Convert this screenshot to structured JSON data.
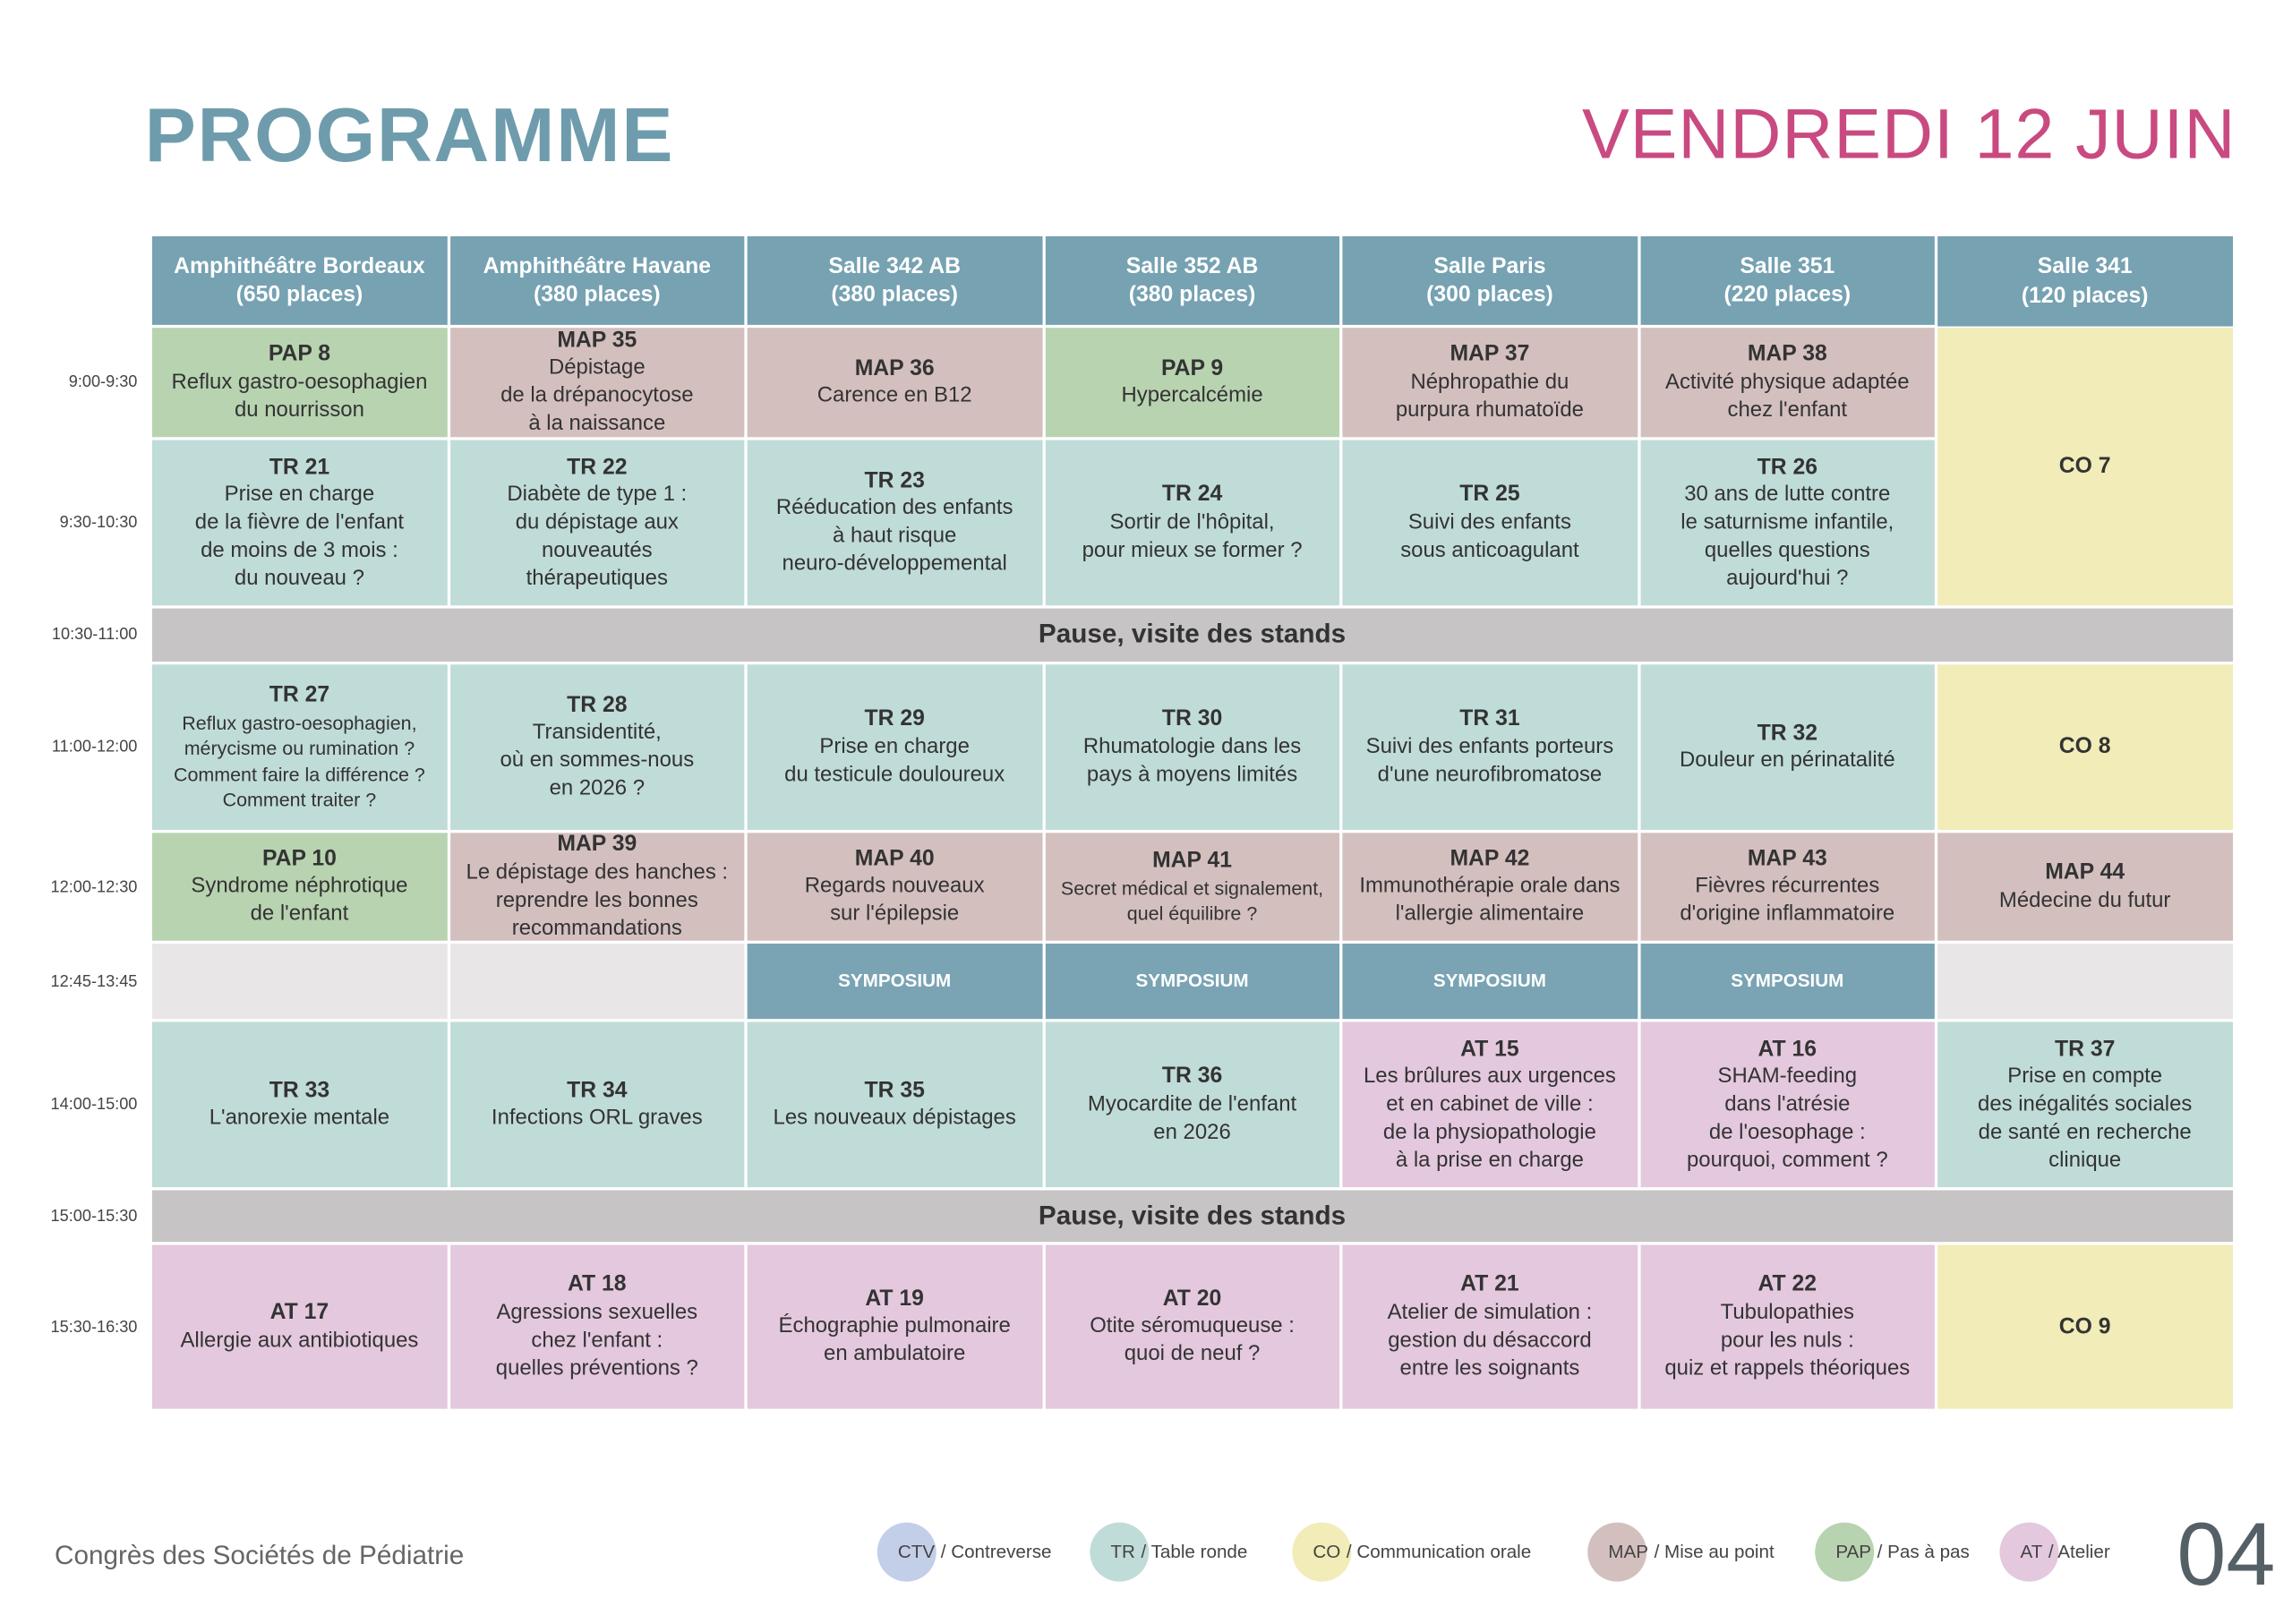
{
  "header": {
    "title": "PROGRAMME",
    "date": "VENDREDI 12 JUIN"
  },
  "rooms": [
    {
      "name": "Amphithéâtre Bordeaux",
      "capacity": "(650 places)"
    },
    {
      "name": "Amphithéâtre Havane",
      "capacity": "(380 places)"
    },
    {
      "name": "Salle 342 AB",
      "capacity": "(380 places)"
    },
    {
      "name": "Salle 352 AB",
      "capacity": "(380 places)"
    },
    {
      "name": "Salle Paris",
      "capacity": "(300 places)"
    },
    {
      "name": "Salle 351",
      "capacity": "(220 places)"
    },
    {
      "name": "Salle 341",
      "capacity": "(120 places)"
    }
  ],
  "rows": [
    {
      "time": "9:00-9:30",
      "cells": [
        {
          "code": "PAP 8",
          "text": "Reflux gastro-oesophagien\ndu nourrisson"
        },
        {
          "code": "MAP 35",
          "text": "Dépistage\nde la drépanocytose\nà la naissance"
        },
        {
          "code": "MAP 36",
          "text": "Carence en B12"
        },
        {
          "code": "PAP 9",
          "text": "Hypercalcémie"
        },
        {
          "code": "MAP 37",
          "text": "Néphropathie du\npurpura rhumatoïde"
        },
        {
          "code": "MAP 38",
          "text": "Activité physique adaptée\nchez l'enfant"
        },
        {
          "code": "CO 7",
          "span": 2
        }
      ]
    },
    {
      "time": "9:30-10:30",
      "cells": [
        {
          "code": "TR 21",
          "text": "Prise en charge\nde la fièvre de l'enfant\nde moins de 3 mois :\ndu nouveau ?"
        },
        {
          "code": "TR 22",
          "text": "Diabète de type 1 :\ndu dépistage aux\nnouveautés\nthérapeutiques"
        },
        {
          "code": "TR 23",
          "text": "Rééducation des enfants\nà haut risque\nneuro-développemental"
        },
        {
          "code": "TR 24",
          "text": "Sortir de l'hôpital,\npour mieux se former ?"
        },
        {
          "code": "TR 25",
          "text": "Suivi des enfants\nsous anticoagulant"
        },
        {
          "code": "TR 26",
          "text": "30 ans de lutte contre\nle saturnisme infantile,\nquelles questions\naujourd'hui ?"
        }
      ]
    },
    {
      "time": "10:30-11:00",
      "pause": "Pause, visite des stands"
    },
    {
      "time": "11:00-12:00",
      "cells": [
        {
          "code": "TR 27",
          "text": "Reflux gastro-oesophagien,\nmérycisme ou rumination ?\nComment faire la différence ?\nComment traiter ?"
        },
        {
          "code": "TR 28",
          "text": "Transidentité,\noù en sommes-nous\nen 2026 ?"
        },
        {
          "code": "TR 29",
          "text": "Prise en charge\ndu testicule douloureux"
        },
        {
          "code": "TR 30",
          "text": "Rhumatologie dans les\npays à moyens limités"
        },
        {
          "code": "TR 31",
          "text": "Suivi des enfants porteurs\nd'une neurofibromatose"
        },
        {
          "code": "TR 32",
          "text": "Douleur en périnatalité"
        },
        {
          "code": "CO 8"
        }
      ]
    },
    {
      "time": "12:00-12:30",
      "cells": [
        {
          "code": "PAP 10",
          "text": "Syndrome néphrotique\nde l'enfant"
        },
        {
          "code": "MAP 39",
          "text": "Le dépistage des hanches :\nreprendre les bonnes\nrecommandations"
        },
        {
          "code": "MAP 40",
          "text": "Regards nouveaux\nsur l'épilepsie"
        },
        {
          "code": "MAP 41",
          "text": "Secret médical et signalement,\nquel équilibre ?"
        },
        {
          "code": "MAP 42",
          "text": "Immunothérapie orale dans\nl'allergie alimentaire"
        },
        {
          "code": "MAP 43",
          "text": "Fièvres récurrentes\nd'origine inflammatoire"
        },
        {
          "code": "MAP 44",
          "text": "Médecine du futur"
        }
      ]
    },
    {
      "time": "12:45-13:45",
      "cells": [
        {},
        {},
        {
          "label": "SYMPOSIUM"
        },
        {
          "label": "SYMPOSIUM"
        },
        {
          "label": "SYMPOSIUM"
        },
        {
          "label": "SYMPOSIUM"
        },
        {}
      ]
    },
    {
      "time": "14:00-15:00",
      "cells": [
        {
          "code": "TR 33",
          "text": "L'anorexie mentale"
        },
        {
          "code": "TR 34",
          "text": "Infections ORL graves"
        },
        {
          "code": "TR 35",
          "text": "Les nouveaux dépistages"
        },
        {
          "code": "TR 36",
          "text": "Myocardite de l'enfant\nen 2026"
        },
        {
          "code": "AT 15",
          "text": "Les brûlures aux urgences\net en cabinet de ville :\nde la physiopathologie\nà la prise en charge"
        },
        {
          "code": "AT 16",
          "text": "SHAM-feeding\ndans l'atrésie\nde l'oesophage :\npourquoi, comment ?"
        },
        {
          "code": "TR 37",
          "text": "Prise en compte\ndes inégalités sociales\nde santé en recherche\nclinique"
        }
      ]
    },
    {
      "time": "15:00-15:30",
      "pause": "Pause, visite des stands"
    },
    {
      "time": "15:30-16:30",
      "cells": [
        {
          "code": "AT 17",
          "text": "Allergie aux antibiotiques"
        },
        {
          "code": "AT 18",
          "text": "Agressions sexuelles\nchez l'enfant :\nquelles préventions ?"
        },
        {
          "code": "AT 19",
          "text": "Échographie pulmonaire\nen ambulatoire"
        },
        {
          "code": "AT 20",
          "text": "Otite séromuqueuse :\nquoi de neuf ?"
        },
        {
          "code": "AT 21",
          "text": "Atelier de simulation :\ngestion du désaccord\nentre les soignants"
        },
        {
          "code": "AT 22",
          "text": "Tubulopathies\npour les nuls :\nquiz et rappels théoriques"
        },
        {
          "code": "CO 9"
        }
      ]
    }
  ],
  "legend": [
    {
      "code": "CTV",
      "label": "/ Contreverse",
      "color": "#c3cfe8"
    },
    {
      "code": "TR",
      "label": "/ Table ronde",
      "color": "#c0dcd8"
    },
    {
      "code": "CO",
      "label": "/ Communication orale",
      "color": "#f1ecb8"
    },
    {
      "code": "MAP",
      "label": "/ Mise au point",
      "color": "#d4bfbf"
    },
    {
      "code": "PAP",
      "label": "/ Pas à pas",
      "color": "#b8d3b0"
    },
    {
      "code": "AT",
      "label": "/ Atelier",
      "color": "#e4c8de"
    }
  ],
  "footer": {
    "organizer": "Congrès des Sociétés de Pédiatrie",
    "page": "04"
  }
}
